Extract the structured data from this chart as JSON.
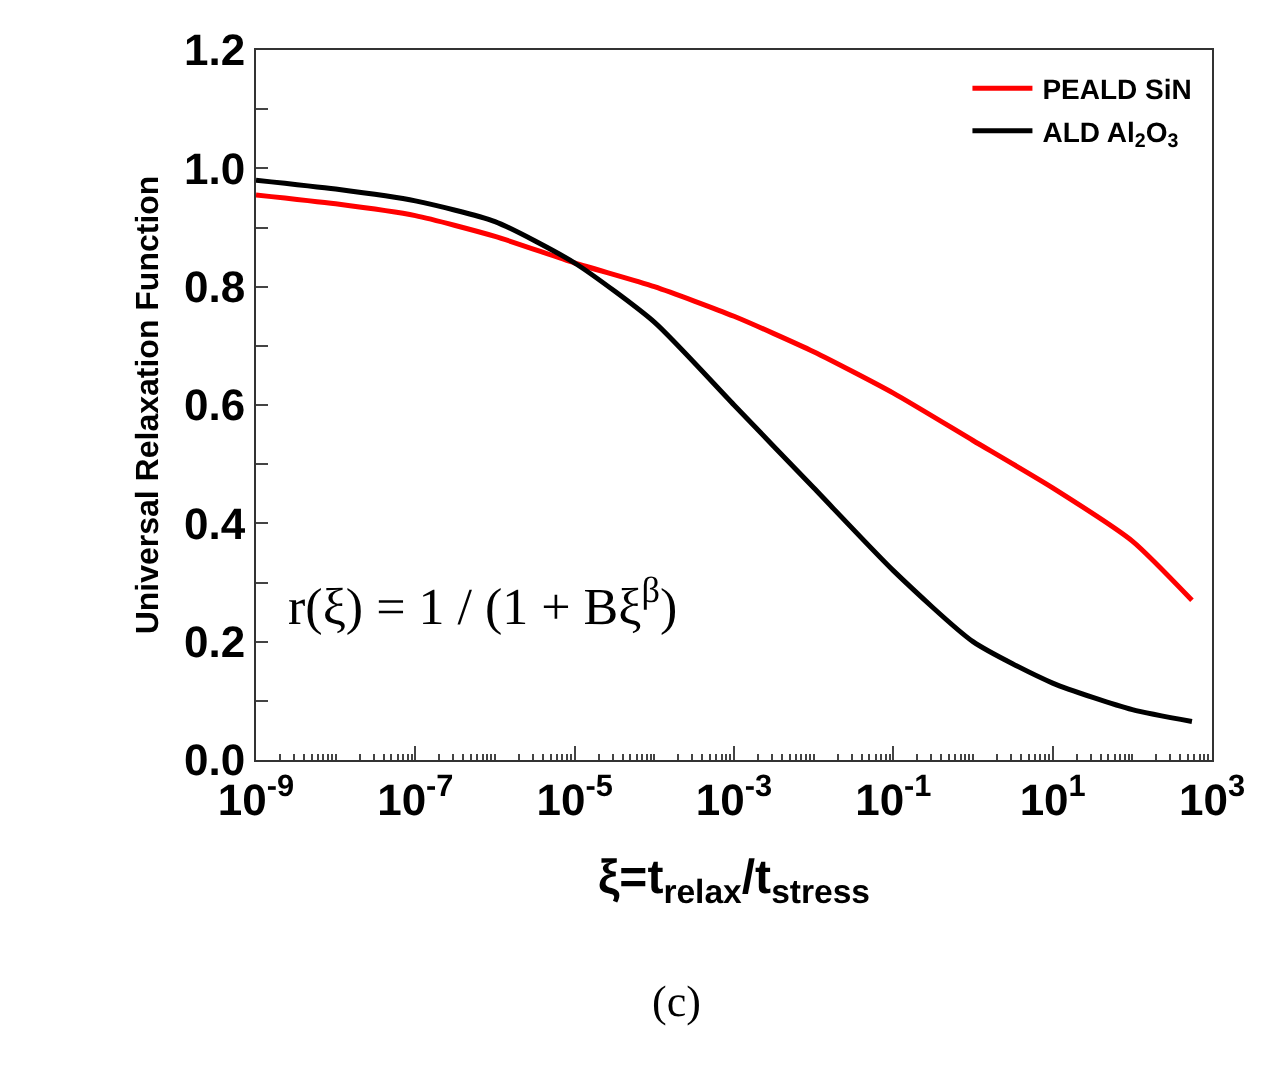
{
  "chart_data": {
    "type": "line",
    "xlabel": "ξ=t$_{relax}$/t$_{stress}$",
    "ylabel": "Universal Relaxation Function",
    "x": [
      1e-09,
      1e-08,
      1e-07,
      1e-06,
      1e-05,
      0.0001,
      0.001,
      0.01,
      0.1,
      1,
      10,
      100,
      560
    ],
    "series": [
      {
        "name": "PEALD SiN",
        "color": "#ff0000",
        "values": [
          0.955,
          0.94,
          0.92,
          0.885,
          0.84,
          0.8,
          0.75,
          0.69,
          0.62,
          0.54,
          0.46,
          0.37,
          0.27
        ]
      },
      {
        "name": "ALD Al$_{2}$O$_{3}$",
        "color": "#000000",
        "values": [
          0.98,
          0.965,
          0.945,
          0.91,
          0.84,
          0.74,
          0.6,
          0.46,
          0.32,
          0.2,
          0.13,
          0.085,
          0.065
        ]
      }
    ],
    "log": "x",
    "xlim": [
      1e-09,
      1000
    ],
    "ylim": [
      0,
      1.2
    ],
    "xticks": [
      {
        "value": 1e-09,
        "label": "10$^{-9}$"
      },
      {
        "value": 1e-07,
        "label": "10$^{-7}$"
      },
      {
        "value": 1e-05,
        "label": "10$^{-5}$"
      },
      {
        "value": 0.001,
        "label": "10$^{-3}$"
      },
      {
        "value": 0.1,
        "label": "10$^{-1}$"
      },
      {
        "value": 10,
        "label": "10$^{1}$"
      },
      {
        "value": 1000,
        "label": "10$^{3}$"
      }
    ],
    "yticks": [
      {
        "value": 0,
        "label": "0.0"
      },
      {
        "value": 0.1,
        "label": null
      },
      0.2,
      {
        "value": 0.3,
        "label": null
      },
      0.4,
      {
        "value": 0.5,
        "label": null
      },
      0.6,
      {
        "value": 0.7,
        "label": null
      },
      0.8,
      {
        "value": 0.9,
        "label": null
      },
      {
        "value": 1,
        "label": "1.0"
      },
      {
        "value": 1.1,
        "label": null
      },
      1.2
    ],
    "legend": "top right",
    "marker": "none",
    "line_style": "solid",
    "annotations": [
      "r(ξ) = 1 / (1 + Bξ$^{β}$)",
      "(c)"
    ]
  }
}
